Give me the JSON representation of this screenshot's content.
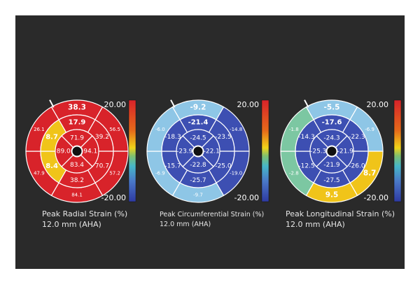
{
  "panels": [
    {
      "title": "Peak Radial Strain (%)",
      "subtitle": "12.0 mm (AHA)",
      "scale_max": "20.00",
      "scale_min": "-20.00",
      "basal": [
        {
          "label": "38.3",
          "color": "#d8232a"
        },
        {
          "label": "56.5",
          "color": "#d8232a"
        },
        {
          "label": "57.2",
          "color": "#d8232a"
        },
        {
          "label": "84.1",
          "color": "#d8232a"
        },
        {
          "label": "47.9",
          "color": "#d8232a"
        },
        {
          "label": "26.1",
          "color": "#d8232a"
        }
      ],
      "mid": [
        {
          "label": "17.9",
          "color": "#d8232a"
        },
        {
          "label": "39.2",
          "color": "#d8232a"
        },
        {
          "label": "70.7",
          "color": "#d8232a"
        },
        {
          "label": "38.2",
          "color": "#d8232a"
        },
        {
          "label": "8.4",
          "color": "#f0c419"
        },
        {
          "label": "8.7",
          "color": "#f0c419"
        }
      ],
      "apical": [
        {
          "label": "71.9",
          "color": "#d8232a"
        },
        {
          "label": "94.1",
          "color": "#d8232a"
        },
        {
          "label": "83.4",
          "color": "#d8232a"
        },
        {
          "label": "89.0",
          "color": "#d8232a"
        }
      ]
    },
    {
      "title": "Peak Circumferential Strain (%)",
      "subtitle": "12.0 mm (AHA)",
      "scale_max": "20.00",
      "scale_min": "-20.00",
      "basal": [
        {
          "label": "-9.2",
          "color": "#8ec6e6"
        },
        {
          "label": "-14.8",
          "color": "#3d4fb2"
        },
        {
          "label": "-19.0",
          "color": "#3d4fb2"
        },
        {
          "label": "-9.7",
          "color": "#8ec6e6"
        },
        {
          "label": "-6.9",
          "color": "#8ec6e6"
        },
        {
          "label": "-6.0",
          "color": "#8ec6e6"
        }
      ],
      "mid": [
        {
          "label": "-21.4",
          "color": "#3d4fb2"
        },
        {
          "label": "-23.5",
          "color": "#3d4fb2"
        },
        {
          "label": "-25.0",
          "color": "#3d4fb2"
        },
        {
          "label": "-25.7",
          "color": "#3d4fb2"
        },
        {
          "label": "-15.7",
          "color": "#3d4fb2"
        },
        {
          "label": "-18.3",
          "color": "#3d4fb2"
        }
      ],
      "apical": [
        {
          "label": "-24.5",
          "color": "#3d4fb2"
        },
        {
          "label": "-22.1",
          "color": "#3d4fb2"
        },
        {
          "label": "-22.8",
          "color": "#3d4fb2"
        },
        {
          "label": "-23.9",
          "color": "#3d4fb2"
        }
      ]
    },
    {
      "title": "Peak Longitudinal Strain (%)",
      "subtitle": "12.0 mm (AHA)",
      "scale_max": "20.00",
      "scale_min": "-20.00",
      "basal": [
        {
          "label": "-5.5",
          "color": "#8ec6e6"
        },
        {
          "label": "-6.9",
          "color": "#8ec6e6"
        },
        {
          "label": "8.7",
          "color": "#f0c419"
        },
        {
          "label": "9.5",
          "color": "#f0c419"
        },
        {
          "label": "-2.8",
          "color": "#7cc7a2"
        },
        {
          "label": "-1.8",
          "color": "#7cc7a2"
        }
      ],
      "mid": [
        {
          "label": "-17.6",
          "color": "#3d4fb2"
        },
        {
          "label": "-22.3",
          "color": "#3d4fb2"
        },
        {
          "label": "-26.0",
          "color": "#3d4fb2"
        },
        {
          "label": "-27.5",
          "color": "#3d4fb2"
        },
        {
          "label": "-12.5",
          "color": "#3d4fb2"
        },
        {
          "label": "-14.3",
          "color": "#3d4fb2"
        }
      ],
      "apical": [
        {
          "label": "-24.3",
          "color": "#3d4fb2"
        },
        {
          "label": "-21.9",
          "color": "#3d4fb2"
        },
        {
          "label": "-21.9",
          "color": "#3d4fb2"
        },
        {
          "label": "-25.3",
          "color": "#3d4fb2"
        }
      ]
    }
  ]
}
